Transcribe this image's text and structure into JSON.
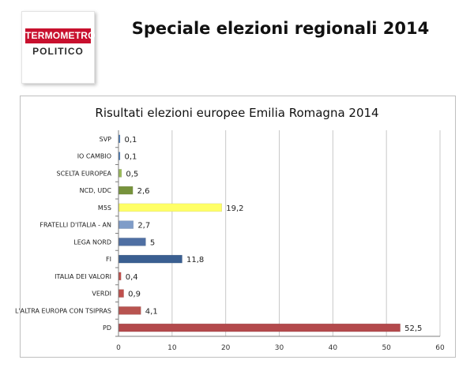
{
  "header": {
    "title": "Speciale elezioni regionali 2014"
  },
  "logo": {
    "line1": "TERMOMETRO",
    "line2": "POLITICO",
    "accent_color": "#c8102e"
  },
  "chart_data": {
    "type": "bar",
    "orientation": "horizontal",
    "title": "Risultati elezioni europee Emilia Romagna 2014",
    "xlabel": "",
    "ylabel": "",
    "xlim": [
      0,
      60
    ],
    "x_ticks": [
      0,
      10,
      20,
      30,
      40,
      50,
      60
    ],
    "grid": "vertical",
    "legend": "none",
    "categories": [
      "SVP",
      "IO CAMBIO",
      "SCELTA EUROPEA",
      "NCD, UDC",
      "M5S",
      "FRATELLI D'ITALIA - AN",
      "LEGA NORD",
      "FI",
      "ITALIA DEI VALORI",
      "VERDI",
      "L'ALTRA EUROPA CON TSIPRAS",
      "PD"
    ],
    "values": [
      0.1,
      0.1,
      0.5,
      2.6,
      19.2,
      2.7,
      5,
      11.8,
      0.4,
      0.9,
      4.1,
      52.5
    ],
    "value_labels": [
      "0,1",
      "0,1",
      "0,5",
      "2,6",
      "19,2",
      "2,7",
      "5",
      "11,8",
      "0,4",
      "0,9",
      "4,1",
      "52,5"
    ],
    "colors": [
      "#4f81bd",
      "#4f81bd",
      "#9bbb59",
      "#77933c",
      "#ffff66",
      "#7f9cc8",
      "#4f6fa3",
      "#3a5f91",
      "#c0504d",
      "#c0504d",
      "#b85450",
      "#b3494c"
    ]
  }
}
